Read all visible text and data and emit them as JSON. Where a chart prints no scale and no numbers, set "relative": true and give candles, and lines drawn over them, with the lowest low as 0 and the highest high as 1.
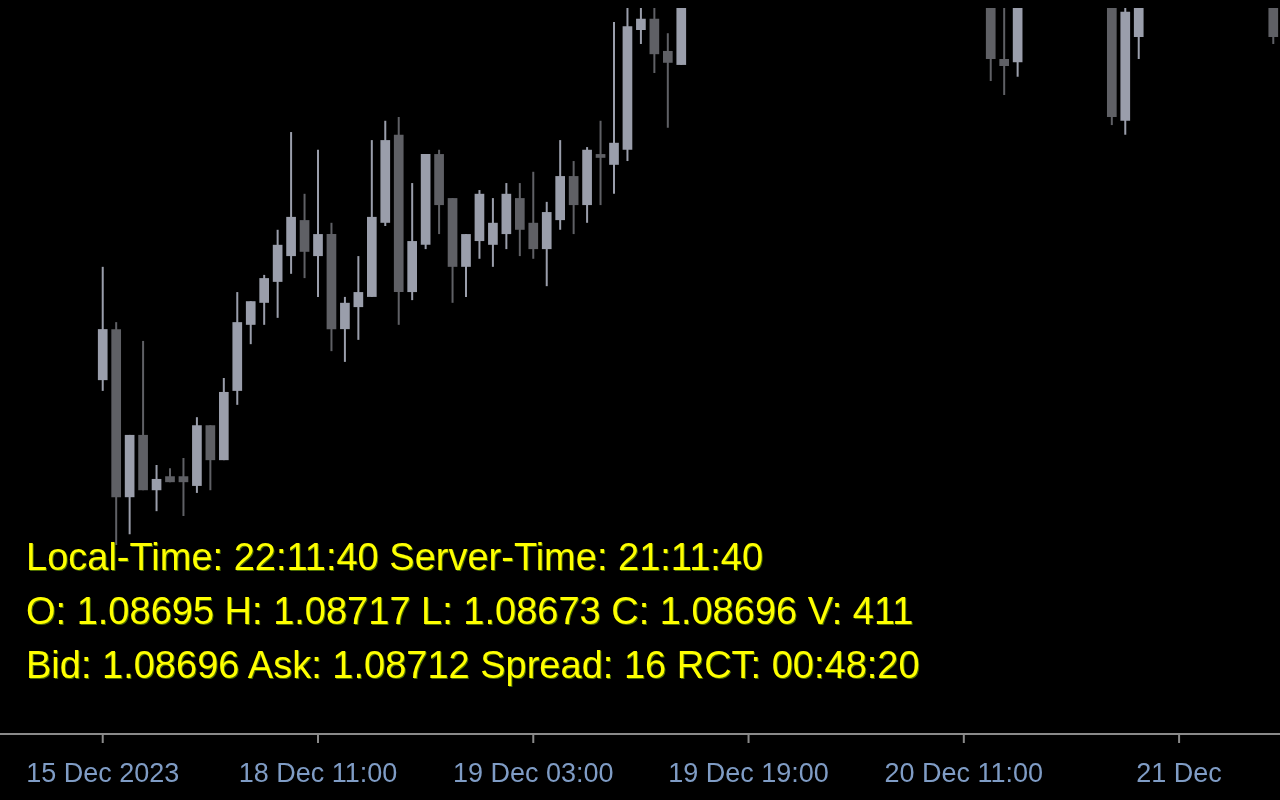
{
  "chart_data": {
    "type": "candlestick",
    "relative": true,
    "categories": [
      "15 Dec 2023",
      null,
      null,
      null,
      null,
      null,
      null,
      null,
      null,
      null,
      null,
      null,
      null,
      null,
      null,
      null,
      "18 Dec 11:00",
      null,
      null,
      null,
      null,
      null,
      null,
      null,
      null,
      null,
      null,
      null,
      null,
      null,
      null,
      null,
      "19 Dec 03:00",
      null,
      null,
      null,
      null,
      null,
      null,
      null,
      null,
      null,
      null,
      null,
      null,
      null,
      null,
      null,
      "19 Dec 19:00",
      null,
      null,
      null,
      null,
      null,
      null,
      null,
      null,
      null,
      null,
      null,
      null,
      null,
      null,
      null,
      "20 Dec 11:00",
      null,
      null,
      null,
      null,
      null,
      null,
      null,
      null,
      null,
      null,
      null,
      null,
      null,
      null,
      null,
      "21 Dec",
      null,
      null,
      null,
      null,
      null,
      null,
      null
    ],
    "ohlc": [
      [
        0.307,
        0.518,
        0.287,
        0.402
      ],
      [
        0.402,
        0.415,
        0,
        0.089
      ],
      [
        0.089,
        0.205,
        0.02,
        0.205
      ],
      [
        0.205,
        0.38,
        0.102,
        0.102
      ],
      [
        0.102,
        0.149,
        0.063,
        0.123
      ],
      [
        0.128,
        0.143,
        0.117,
        0.117
      ],
      [
        0.128,
        0.162,
        0.054,
        0.117
      ],
      [
        0.11,
        0.238,
        0.097,
        0.223
      ],
      [
        0.223,
        0.223,
        0.102,
        0.158
      ],
      [
        0.158,
        0.311,
        0.158,
        0.285
      ],
      [
        0.287,
        0.471,
        0.261,
        0.415
      ],
      [
        0.41,
        0.454,
        0.374,
        0.454
      ],
      [
        0.451,
        0.503,
        0.41,
        0.497
      ],
      [
        0.49,
        0.587,
        0.423,
        0.559
      ],
      [
        0.538,
        0.769,
        0.505,
        0.611
      ],
      [
        0.605,
        0.654,
        0.497,
        0.546
      ],
      [
        0.538,
        0.736,
        0.462,
        0.579
      ],
      [
        0.579,
        0.6,
        0.361,
        0.402
      ],
      [
        0.402,
        0.462,
        0.341,
        0.451
      ],
      [
        0.443,
        0.538,
        0.382,
        0.471
      ],
      [
        0.462,
        0.754,
        0.462,
        0.611
      ],
      [
        0.6,
        0.79,
        0.594,
        0.754
      ],
      [
        0.764,
        0.797,
        0.41,
        0.471
      ],
      [
        0.471,
        0.674,
        0.456,
        0.566
      ],
      [
        0.559,
        0.728,
        0.551,
        0.728
      ],
      [
        0.728,
        0.736,
        0.579,
        0.633
      ],
      [
        0.646,
        0.646,
        0.451,
        0.518
      ],
      [
        0.518,
        0.579,
        0.462,
        0.579
      ],
      [
        0.566,
        0.661,
        0.533,
        0.654
      ],
      [
        0.559,
        0.646,
        0.518,
        0.6
      ],
      [
        0.579,
        0.674,
        0.551,
        0.654
      ],
      [
        0.646,
        0.674,
        0.538,
        0.587
      ],
      [
        0.6,
        0.695,
        0.533,
        0.551
      ],
      [
        0.551,
        0.639,
        0.482,
        0.62
      ],
      [
        0.605,
        0.754,
        0.587,
        0.687
      ],
      [
        0.687,
        0.715,
        0.579,
        0.633
      ],
      [
        0.633,
        0.741,
        0.6,
        0.736
      ],
      [
        0.728,
        0.79,
        0.633,
        0.721
      ],
      [
        0.708,
        0.974,
        0.654,
        0.749
      ],
      [
        0.736,
        1,
        0.715,
        0.966
      ],
      [
        0.959,
        1,
        0.933,
        0.98
      ],
      [
        0.98,
        1,
        0.879,
        0.914
      ],
      [
        0.92,
        0.953,
        0.777,
        0.898
      ],
      [
        0.894,
        1,
        0.894,
        1
      ],
      null,
      null,
      null,
      null,
      null,
      null,
      null,
      null,
      null,
      null,
      null,
      null,
      null,
      null,
      null,
      null,
      null,
      null,
      null,
      null,
      null,
      null,
      [
        1,
        1,
        0.864,
        0.905
      ],
      [
        0.905,
        1,
        0.838,
        0.892
      ],
      [
        0.899,
        1,
        0.872,
        1
      ],
      null,
      null,
      null,
      null,
      null,
      null,
      [
        1,
        1,
        0.782,
        0.797
      ],
      [
        0.79,
        1,
        0.764,
        0.993
      ],
      [
        0.946,
        1,
        0.905,
        1
      ],
      null,
      null,
      null,
      null,
      null,
      null,
      null,
      null,
      null,
      [
        1,
        1,
        0.933,
        0.946
      ]
    ],
    "colors": [
      "#9a9eab",
      "#5f6065",
      "#9a9eab",
      "#5f6065",
      "#9a9eab",
      "#5f6065",
      "#5f6065",
      "#9a9eab",
      "#5f6065",
      "#9a9eab",
      "#9a9eab",
      "#9a9eab",
      "#9a9eab",
      "#9a9eab",
      "#9a9eab",
      "#5f6065",
      "#9a9eab",
      "#5f6065",
      "#9a9eab",
      "#9a9eab",
      "#9a9eab",
      "#9a9eab",
      "#5f6065",
      "#9a9eab",
      "#9a9eab",
      "#5f6065",
      "#5f6065",
      "#9a9eab",
      "#9a9eab",
      "#9a9eab",
      "#9a9eab",
      "#5f6065",
      "#5f6065",
      "#9a9eab",
      "#9a9eab",
      "#5f6065",
      "#9a9eab",
      "#5f6065",
      "#9a9eab",
      "#9a9eab",
      "#9a9eab",
      "#5f6065",
      "#5f6065",
      "#9a9eab",
      null,
      null,
      null,
      null,
      null,
      null,
      null,
      null,
      null,
      null,
      null,
      null,
      null,
      null,
      null,
      null,
      null,
      null,
      null,
      null,
      null,
      null,
      "#5f6065",
      "#5f6065",
      "#9a9eab",
      null,
      null,
      null,
      null,
      null,
      null,
      "#5f6065",
      "#9a9eab",
      "#9a9eab",
      null,
      null,
      null,
      null,
      null,
      null,
      null,
      null,
      null,
      "#5f6065"
    ],
    "annotations": [
      "Local-Time: 22:11:40 Server-Time: 21:11:40",
      "O: 1.08695 H: 1.08717 L: 1.08673 C: 1.08696 V: 411",
      "Bid: 1.08696 Ask: 1.08712 Spread: 16 RCT: 00:48:20"
    ]
  }
}
